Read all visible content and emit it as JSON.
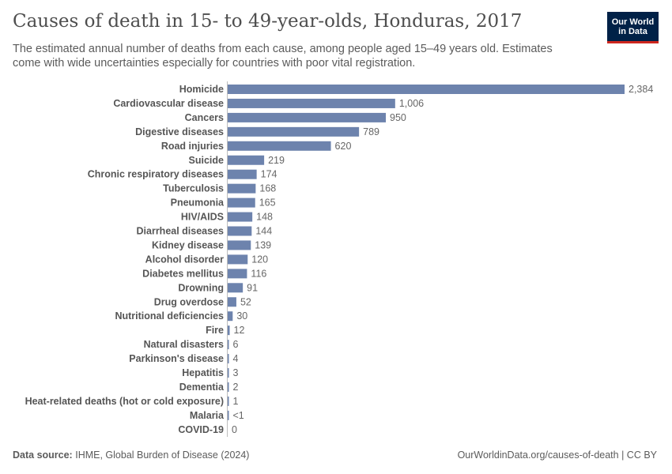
{
  "header": {
    "title": "Causes of death in 15- to 49-year-olds, Honduras, 2017",
    "subtitle": "The estimated annual number of deaths from each cause, among people aged 15–49 years old. Estimates come with wide uncertainties especially for countries with poor vital registration.",
    "logo_line1": "Our World",
    "logo_line2": "in Data"
  },
  "footer": {
    "source_label": "Data source:",
    "source_text": "IHME, Global Burden of Disease (2024)",
    "url": "OurWorldinData.org/causes-of-death | CC BY"
  },
  "colors": {
    "bar": "#6d83ad",
    "logo_bg": "#002147",
    "logo_accent": "#ce261e"
  },
  "chart_data": {
    "type": "bar",
    "orientation": "horizontal",
    "title": "Causes of death in 15- to 49-year-olds, Honduras, 2017",
    "categories": [
      "Homicide",
      "Cardiovascular disease",
      "Cancers",
      "Digestive diseases",
      "Road injuries",
      "Suicide",
      "Chronic respiratory diseases",
      "Tuberculosis",
      "Pneumonia",
      "HIV/AIDS",
      "Diarrheal diseases",
      "Kidney disease",
      "Alcohol disorder",
      "Diabetes mellitus",
      "Drowning",
      "Drug overdose",
      "Nutritional deficiencies",
      "Fire",
      "Natural disasters",
      "Parkinson's disease",
      "Hepatitis",
      "Dementia",
      "Heat-related deaths (hot or cold exposure)",
      "Malaria",
      "COVID-19"
    ],
    "values": [
      2384,
      1006,
      950,
      789,
      620,
      219,
      174,
      168,
      165,
      148,
      144,
      139,
      120,
      116,
      91,
      52,
      30,
      12,
      6,
      4,
      3,
      2,
      1,
      0.4,
      0
    ],
    "value_labels": [
      "2,384",
      "1,006",
      "950",
      "789",
      "620",
      "219",
      "174",
      "168",
      "165",
      "148",
      "144",
      "139",
      "120",
      "116",
      "91",
      "52",
      "30",
      "12",
      "6",
      "4",
      "3",
      "2",
      "1",
      "<1",
      "0"
    ],
    "xlim": [
      0,
      2384
    ],
    "grid": false,
    "legend": "none"
  }
}
